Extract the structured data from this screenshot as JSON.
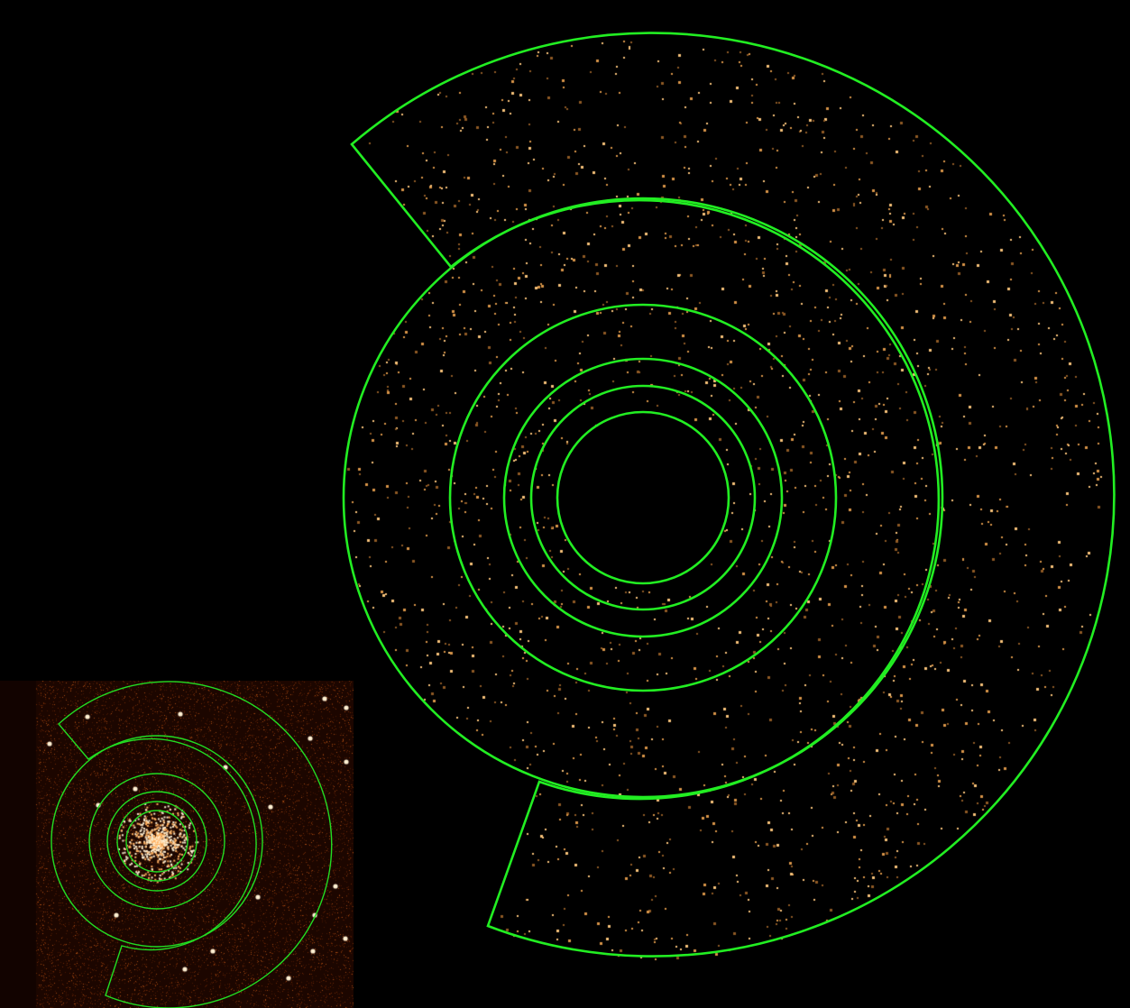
{
  "colors": {
    "background": "#000000",
    "region_outline": "#22ee22",
    "main_photon_light": "#f7c27a",
    "main_photon_mid": "#d89548",
    "main_photon_dim": "#8f5a24",
    "inset_background": "#1c0600",
    "inset_noise": "#6e2a06",
    "inset_star": "#fff0d2"
  },
  "main_panel": {
    "description_icon": "xray-event-map",
    "regions": [
      "inner-circle-excluded",
      "annulus-1",
      "annulus-2",
      "annulus-3",
      "annulus-4",
      "outer-partial-annulus"
    ]
  },
  "inset_panel": {
    "description_icon": "optical-star-cluster-image",
    "regions": [
      "inner-circle-excluded",
      "annulus-1",
      "annulus-2",
      "annulus-3",
      "annulus-4",
      "outer-partial-annulus"
    ]
  }
}
